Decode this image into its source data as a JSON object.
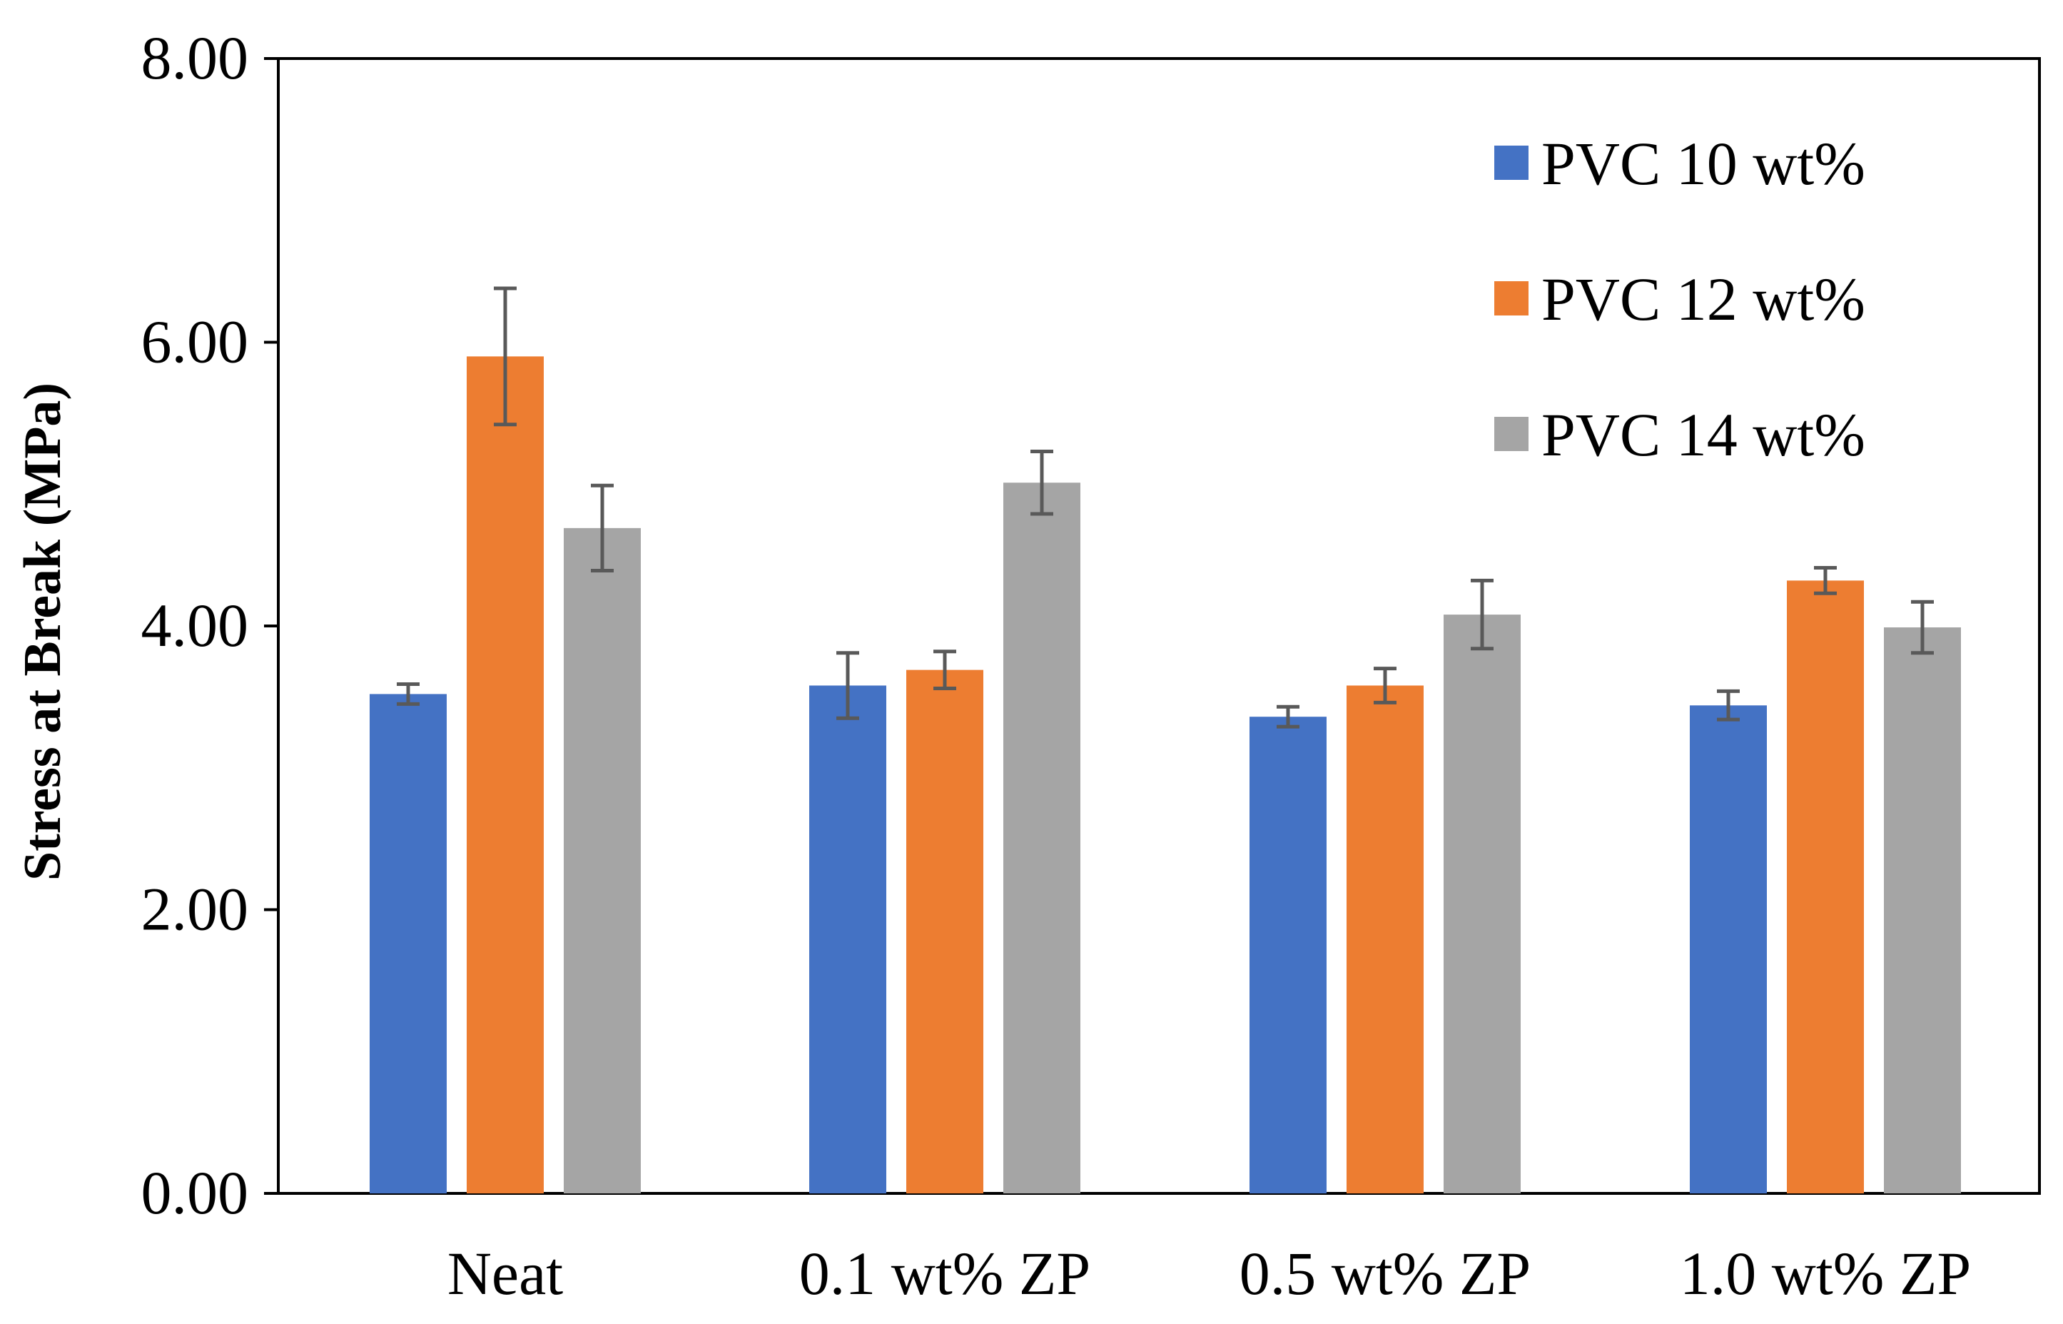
{
  "chart_data": {
    "type": "bar",
    "title": "",
    "xlabel": "",
    "ylabel": "Stress at Break (MPa)",
    "ylim": [
      0,
      8
    ],
    "yticks": [
      "0.00",
      "2.00",
      "4.00",
      "6.00",
      "8.00"
    ],
    "categories": [
      "Neat",
      "0.1 wt% ZP",
      "0.5 wt% ZP",
      "1.0 wt% ZP"
    ],
    "series": [
      {
        "name": "PVC 10 wt%",
        "color": "#4472C4",
        "values": [
          3.52,
          3.58,
          3.36,
          3.44
        ],
        "errors": [
          0.07,
          0.23,
          0.07,
          0.1
        ]
      },
      {
        "name": "PVC 12 wt%",
        "color": "#ED7D31",
        "values": [
          5.9,
          3.69,
          3.58,
          4.32
        ],
        "errors": [
          0.48,
          0.13,
          0.12,
          0.09
        ]
      },
      {
        "name": "PVC 14 wt%",
        "color": "#A5A5A5",
        "values": [
          4.69,
          5.01,
          4.08,
          3.99
        ],
        "errors": [
          0.3,
          0.22,
          0.24,
          0.18
        ]
      }
    ],
    "error_bar_color": "#595959",
    "grid": false,
    "legend_position": "top-right"
  }
}
